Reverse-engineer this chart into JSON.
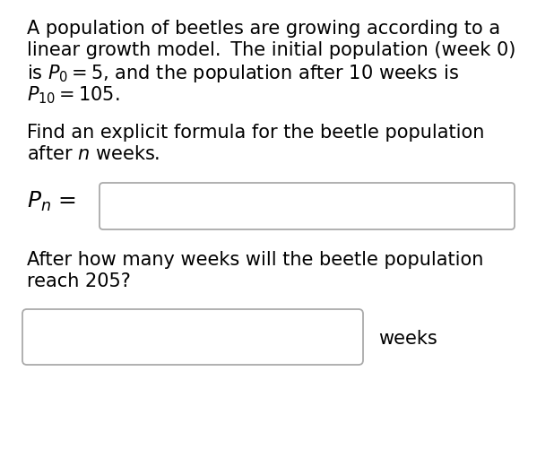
{
  "background_color": "#ffffff",
  "paragraph1_lines": [
    "A population of beetles are growing according to a",
    "linear growth model.  The initial population (week 0)",
    "is $P_0 = 5$, and the population after 10 weeks is",
    "$P_{10} = 105$."
  ],
  "paragraph2_lines": [
    "Find an explicit formula for the beetle population",
    "after $n$ weeks."
  ],
  "paragraph3_lines": [
    "After how many weeks will the beetle population",
    "reach 205?"
  ],
  "weeks_label": "weeks",
  "text_color": "#000000",
  "background_color_str": "#ffffff"
}
